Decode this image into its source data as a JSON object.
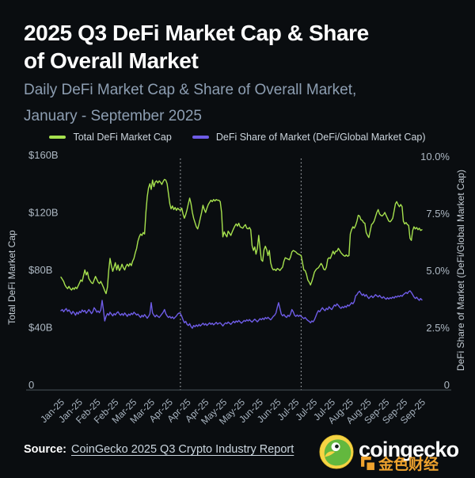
{
  "header": {
    "title_line1": "2025 Q3 DeFi Market Cap & Share",
    "title_line2": "of Overall Market",
    "subtitle_line1": "Daily DeFi Market Cap & Share of Overall Market,",
    "subtitle_line2": "January - September 2025"
  },
  "legend": [
    {
      "label": "Total DeFi Market Cap",
      "color": "#a6e14e"
    },
    {
      "label": "DeFi Share of Market (DeFi/Global Market Cap)",
      "color": "#6e5ce6"
    }
  ],
  "chart_data": {
    "type": "line",
    "title": "2025 Q3 DeFi Market Cap & Share of Overall Market",
    "subtitle": "Daily DeFi Market Cap & Share of Overall Market, January - September 2025",
    "x_description": "Daily values, January through September 2025 (273 days)",
    "x_tick_labels": [
      "Jan-25",
      "Jan-25",
      "Feb-25",
      "Feb-25",
      "Mar-25",
      "Mar-25",
      "Apr-25",
      "Apr-25",
      "Apr-25",
      "May-25",
      "May-25",
      "Jun-25",
      "Jun-25",
      "Jul-25",
      "Jul-25",
      "Jul-25",
      "Aug-25",
      "Aug-25",
      "Sep-25",
      "Sep-25",
      "Sep-25"
    ],
    "vertical_markers": {
      "style": "dotted",
      "day_indices": [
        90,
        181
      ],
      "meaning": [
        "Q2 start (Apr-25)",
        "Q3 start (Jul-25)"
      ]
    },
    "grid": false,
    "legend_position": "top",
    "left_axis": {
      "label": "Total DeFi Market Cap",
      "tick_labels": [
        "$160B",
        "$120B",
        "$80B",
        "$40B",
        "0"
      ],
      "tick_values": [
        160,
        120,
        80,
        40,
        0
      ],
      "range": [
        0,
        160
      ],
      "unit": "USD billions"
    },
    "right_axis": {
      "label": "DeFi Share of Market (DeFi/Global Market Cap)",
      "tick_labels": [
        "10.0%",
        "7.5%",
        "5.0%",
        "2.5%",
        "0"
      ],
      "tick_values": [
        10,
        7.5,
        5,
        2.5,
        0
      ],
      "range": [
        0,
        10
      ],
      "unit": "percent"
    },
    "series": [
      {
        "name": "Total DeFi Market Cap",
        "axis": "left",
        "unit": "$B",
        "color": "#a6e14e",
        "values": [
          75,
          73.5,
          72,
          69.5,
          68,
          67,
          68.5,
          67,
          66,
          67.5,
          66.5,
          68,
          67,
          69,
          71,
          73,
          72,
          76,
          80,
          76.5,
          78.5,
          74,
          72.5,
          71,
          70.5,
          73,
          75.5,
          73.5,
          71.5,
          70.5,
          72,
          70,
          68,
          65.5,
          63.5,
          68,
          80,
          88,
          83,
          79,
          82,
          85,
          80,
          83.5,
          79.5,
          81,
          84,
          81.5,
          80,
          82.5,
          84,
          82.5,
          84.5,
          83,
          86,
          88,
          92,
          95,
          100,
          103,
          105,
          104,
          106,
          105,
          120,
          131,
          137,
          140,
          136,
          142.5,
          138,
          141,
          142,
          140.5,
          142,
          141,
          139.5,
          141.5,
          143,
          142.5,
          140,
          133,
          126,
          122.5,
          124.5,
          122,
          123.5,
          121.5,
          123,
          122,
          121.5,
          123,
          119,
          116,
          118.5,
          122,
          126,
          130,
          126,
          120,
          116,
          113,
          110,
          108.5,
          112,
          116,
          120,
          125,
          122,
          120,
          123,
          125.5,
          127,
          128.5,
          127.5,
          129,
          128,
          129,
          128.5,
          128.5,
          127.5,
          120,
          103,
          106.5,
          104.5,
          103,
          107,
          105.5,
          104,
          106.5,
          108.5,
          110.5,
          112,
          110.5,
          112.5,
          110,
          109.5,
          109,
          110.5,
          111.5,
          109,
          108.5,
          109.5,
          108,
          97,
          93.5,
          96,
          91,
          95,
          104,
          95,
          87,
          86,
          94,
          96.5,
          94,
          90,
          93.5,
          85,
          81.5,
          80,
          80.5,
          79.5,
          81,
          80.5,
          79.6,
          80.9,
          82,
          86,
          88.5,
          88,
          87.5,
          87,
          89,
          92.5,
          93.5,
          93,
          92.5,
          91.5,
          91,
          90.5,
          90,
          85,
          80,
          79.5,
          77,
          73,
          71.5,
          69.5,
          72,
          75,
          78.5,
          80,
          81,
          81.5,
          83,
          84.5,
          83,
          80.5,
          80,
          82,
          87.5,
          88.5,
          88,
          90.5,
          93,
          91,
          93,
          93,
          95,
          93.5,
          92,
          91,
          90,
          89.5,
          90.5,
          89.5,
          90,
          105,
          108,
          110,
          109,
          111,
          114,
          118,
          117.5,
          115,
          114.5,
          113,
          112.5,
          106,
          104,
          102.5,
          107,
          111.5,
          112.5,
          114,
          117,
          120,
          122,
          119,
          118,
          117.5,
          118.5,
          120,
          118,
          116,
          114,
          113.5,
          114.5,
          116,
          121,
          126,
          127.5,
          125.5,
          124,
          125.5,
          124,
          114,
          112,
          113,
          111.5,
          111,
          102,
          100.5,
          107.5,
          110,
          108.5,
          109.5,
          108,
          109,
          107.5,
          108
        ]
      },
      {
        "name": "DeFi Share of Market (DeFi/Global Market Cap)",
        "axis": "right",
        "unit": "%",
        "color": "#6e5ce6",
        "values": [
          3.25,
          3.3,
          3.2,
          3.28,
          3.34,
          3.22,
          3.28,
          3.2,
          3.1,
          3.22,
          3.15,
          3.05,
          3.18,
          3.1,
          3.22,
          3.16,
          3.28,
          3.2,
          3.26,
          3.14,
          3.2,
          3.3,
          3.22,
          3.12,
          3.2,
          3.38,
          3.3,
          3.18,
          3.24,
          3.16,
          3.28,
          3.7,
          3.3,
          2.8,
          3.0,
          3.12,
          3.05,
          3.18,
          3.1,
          3.02,
          3.12,
          3.06,
          3.15,
          3.2,
          3.1,
          3.05,
          3.12,
          3.04,
          3.15,
          3.08,
          3.0,
          3.1,
          3.05,
          3.14,
          3.08,
          3.18,
          3.12,
          3.06,
          3.1,
          3.02,
          2.95,
          3.05,
          2.98,
          3.08,
          3.0,
          2.92,
          3.0,
          3.1,
          3.6,
          3.15,
          3.05,
          2.98,
          3.06,
          3.0,
          2.95,
          3.02,
          3.1,
          3.18,
          3.3,
          3.12,
          3.02,
          2.95,
          3.0,
          2.92,
          2.98,
          2.9,
          2.96,
          3.02,
          3.1,
          3.15,
          3.12,
          3.0,
          2.85,
          2.72,
          2.78,
          2.65,
          2.6,
          2.68,
          2.55,
          2.48,
          2.6,
          2.55,
          2.62,
          2.56,
          2.65,
          2.58,
          2.64,
          2.7,
          2.62,
          2.68,
          2.6,
          2.66,
          2.72,
          2.65,
          2.7,
          2.63,
          2.68,
          2.74,
          2.66,
          2.7,
          2.72,
          2.65,
          2.58,
          2.66,
          2.72,
          2.68,
          2.75,
          2.7,
          2.65,
          2.72,
          2.78,
          2.72,
          2.8,
          2.75,
          2.82,
          2.76,
          2.7,
          2.76,
          2.82,
          2.78,
          2.85,
          2.8,
          2.86,
          2.8,
          2.75,
          2.82,
          2.88,
          2.82,
          2.76,
          2.83,
          2.9,
          2.85,
          2.92,
          2.86,
          2.95,
          2.9,
          2.96,
          2.9,
          2.85,
          2.92,
          3.0,
          3.05,
          3.15,
          3.4,
          3.6,
          3.35,
          3.1,
          3.02,
          3.08,
          3.0,
          2.95,
          3.05,
          3.0,
          3.1,
          3.3,
          3.2,
          3.05,
          3.0,
          3.06,
          3.0,
          3.05,
          3.0,
          2.95,
          2.9,
          2.95,
          2.88,
          2.82,
          2.78,
          2.72,
          2.8,
          2.76,
          2.85,
          3.0,
          3.15,
          3.25,
          3.2,
          3.3,
          3.38,
          3.3,
          3.25,
          3.35,
          3.3,
          3.42,
          3.35,
          3.3,
          3.4,
          3.5,
          3.45,
          3.55,
          3.48,
          3.4,
          3.35,
          3.42,
          3.38,
          3.45,
          3.4,
          3.5,
          3.45,
          3.52,
          3.6,
          3.55,
          3.65,
          3.9,
          3.95,
          4.05,
          4.1,
          4.0,
          3.92,
          3.98,
          3.88,
          3.95,
          3.85,
          3.78,
          3.85,
          3.9,
          3.82,
          3.88,
          3.95,
          3.9,
          3.85,
          3.92,
          3.85,
          3.8,
          3.86,
          3.8,
          3.75,
          3.82,
          3.76,
          3.82,
          3.78,
          3.85,
          3.8,
          3.88,
          3.84,
          3.9,
          3.86,
          3.92,
          3.88,
          3.95,
          4.0,
          4.05,
          4.0,
          4.08,
          4.12,
          4.05,
          3.95,
          3.85,
          3.78,
          3.84,
          3.76,
          3.7,
          3.78,
          3.72
        ]
      }
    ]
  },
  "footer": {
    "source_prefix": "Source:",
    "source_link": "CoinGecko 2025 Q3 Crypto Industry Report",
    "brand": "coingecko",
    "watermark": "金色财经"
  },
  "colors": {
    "background": "#0a0d10",
    "title": "#ffffff",
    "subtitle": "#8d9eb2",
    "axis_line": "#4a525a",
    "tick_text": "#aeb9c4",
    "marker_line": "#ccd1d6",
    "series_green": "#a6e14e",
    "series_purple": "#6e5ce6",
    "brand_yellow": "#f5d445",
    "gecko_green": "#63b83e",
    "watermark_orange": "#efa32e"
  }
}
